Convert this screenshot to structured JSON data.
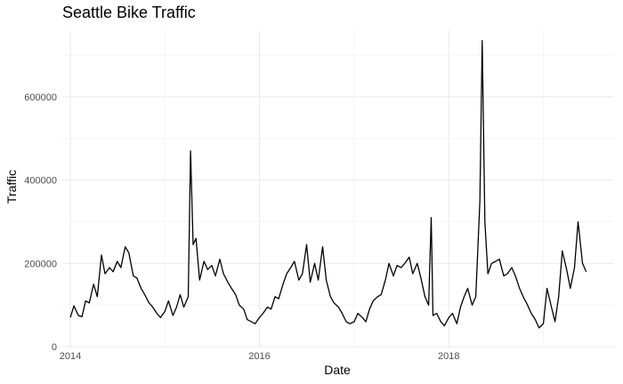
{
  "chart_data": {
    "type": "line",
    "title": "Seattle Bike Traffic",
    "xlabel": "Date",
    "ylabel": "Traffic",
    "xlim": [
      "2013-12-01",
      "2019-10-01"
    ],
    "ylim": [
      0,
      760000
    ],
    "x_ticks": [
      {
        "value": "2014-01-01",
        "label": "2014"
      },
      {
        "value": "2016-01-01",
        "label": "2016"
      },
      {
        "value": "2018-01-01",
        "label": "2018"
      }
    ],
    "y_ticks": [
      {
        "value": 0,
        "label": "0"
      },
      {
        "value": 200000,
        "label": "200000"
      },
      {
        "value": 400000,
        "label": "400000"
      },
      {
        "value": 600000,
        "label": "600000"
      }
    ],
    "grid": true,
    "line_color": "#000000",
    "series": [
      {
        "name": "",
        "x": [
          "2014-01-01",
          "2014-01-15",
          "2014-02-01",
          "2014-02-15",
          "2014-03-01",
          "2014-03-15",
          "2014-04-01",
          "2014-04-15",
          "2014-05-01",
          "2014-05-15",
          "2014-06-01",
          "2014-06-15",
          "2014-07-01",
          "2014-07-15",
          "2014-08-01",
          "2014-08-15",
          "2014-09-01",
          "2014-09-15",
          "2014-10-01",
          "2014-10-15",
          "2014-11-01",
          "2014-11-15",
          "2014-12-01",
          "2014-12-15",
          "2015-01-01",
          "2015-01-15",
          "2015-02-01",
          "2015-02-15",
          "2015-03-01",
          "2015-03-15",
          "2015-04-01",
          "2015-04-10",
          "2015-04-20",
          "2015-05-01",
          "2015-05-15",
          "2015-06-01",
          "2015-06-15",
          "2015-07-01",
          "2015-07-15",
          "2015-08-01",
          "2015-08-15",
          "2015-09-01",
          "2015-09-15",
          "2015-10-01",
          "2015-10-15",
          "2015-11-01",
          "2015-11-15",
          "2015-12-01",
          "2015-12-15",
          "2016-01-01",
          "2016-01-15",
          "2016-02-01",
          "2016-02-15",
          "2016-03-01",
          "2016-03-15",
          "2016-04-01",
          "2016-04-15",
          "2016-05-01",
          "2016-05-15",
          "2016-06-01",
          "2016-06-15",
          "2016-07-01",
          "2016-07-15",
          "2016-08-01",
          "2016-08-15",
          "2016-09-01",
          "2016-09-15",
          "2016-10-01",
          "2016-10-15",
          "2016-11-01",
          "2016-11-15",
          "2016-12-01",
          "2016-12-15",
          "2017-01-01",
          "2017-01-15",
          "2017-02-01",
          "2017-02-15",
          "2017-03-01",
          "2017-03-15",
          "2017-04-01",
          "2017-04-15",
          "2017-05-01",
          "2017-05-15",
          "2017-06-01",
          "2017-06-15",
          "2017-07-01",
          "2017-07-15",
          "2017-08-01",
          "2017-08-15",
          "2017-09-01",
          "2017-09-15",
          "2017-10-01",
          "2017-10-15",
          "2017-10-25",
          "2017-11-01",
          "2017-11-15",
          "2017-12-01",
          "2017-12-15",
          "2018-01-01",
          "2018-01-15",
          "2018-02-01",
          "2018-02-15",
          "2018-03-01",
          "2018-03-15",
          "2018-04-01",
          "2018-04-15",
          "2018-05-01",
          "2018-05-10",
          "2018-05-20",
          "2018-06-01",
          "2018-06-15",
          "2018-07-01",
          "2018-07-15",
          "2018-08-01",
          "2018-08-15",
          "2018-09-01",
          "2018-09-15",
          "2018-10-01",
          "2018-10-15",
          "2018-11-01",
          "2018-11-15",
          "2018-12-01",
          "2018-12-15",
          "2019-01-01",
          "2019-01-15",
          "2019-02-01",
          "2019-02-15",
          "2019-03-01",
          "2019-03-15",
          "2019-04-01",
          "2019-04-15",
          "2019-05-01",
          "2019-05-15",
          "2019-06-01",
          "2019-06-15"
        ],
        "values": [
          70000,
          98000,
          75000,
          72000,
          110000,
          105000,
          150000,
          120000,
          220000,
          175000,
          190000,
          180000,
          205000,
          190000,
          240000,
          225000,
          170000,
          165000,
          140000,
          125000,
          105000,
          95000,
          80000,
          70000,
          85000,
          110000,
          75000,
          95000,
          125000,
          95000,
          120000,
          470000,
          245000,
          260000,
          160000,
          205000,
          185000,
          195000,
          170000,
          210000,
          175000,
          155000,
          140000,
          125000,
          100000,
          90000,
          65000,
          60000,
          55000,
          70000,
          80000,
          95000,
          90000,
          120000,
          115000,
          150000,
          175000,
          190000,
          205000,
          160000,
          175000,
          245000,
          155000,
          200000,
          160000,
          240000,
          160000,
          120000,
          105000,
          95000,
          80000,
          60000,
          55000,
          60000,
          80000,
          70000,
          60000,
          90000,
          110000,
          120000,
          125000,
          160000,
          200000,
          170000,
          195000,
          190000,
          200000,
          215000,
          175000,
          200000,
          165000,
          120000,
          100000,
          310000,
          75000,
          80000,
          60000,
          50000,
          70000,
          80000,
          55000,
          95000,
          120000,
          140000,
          100000,
          120000,
          350000,
          735000,
          300000,
          175000,
          200000,
          205000,
          210000,
          170000,
          175000,
          190000,
          170000,
          140000,
          120000,
          100000,
          80000,
          65000,
          45000,
          55000,
          140000,
          95000,
          60000,
          120000,
          230000,
          185000,
          140000,
          190000,
          300000,
          200000,
          180000
        ]
      }
    ]
  }
}
